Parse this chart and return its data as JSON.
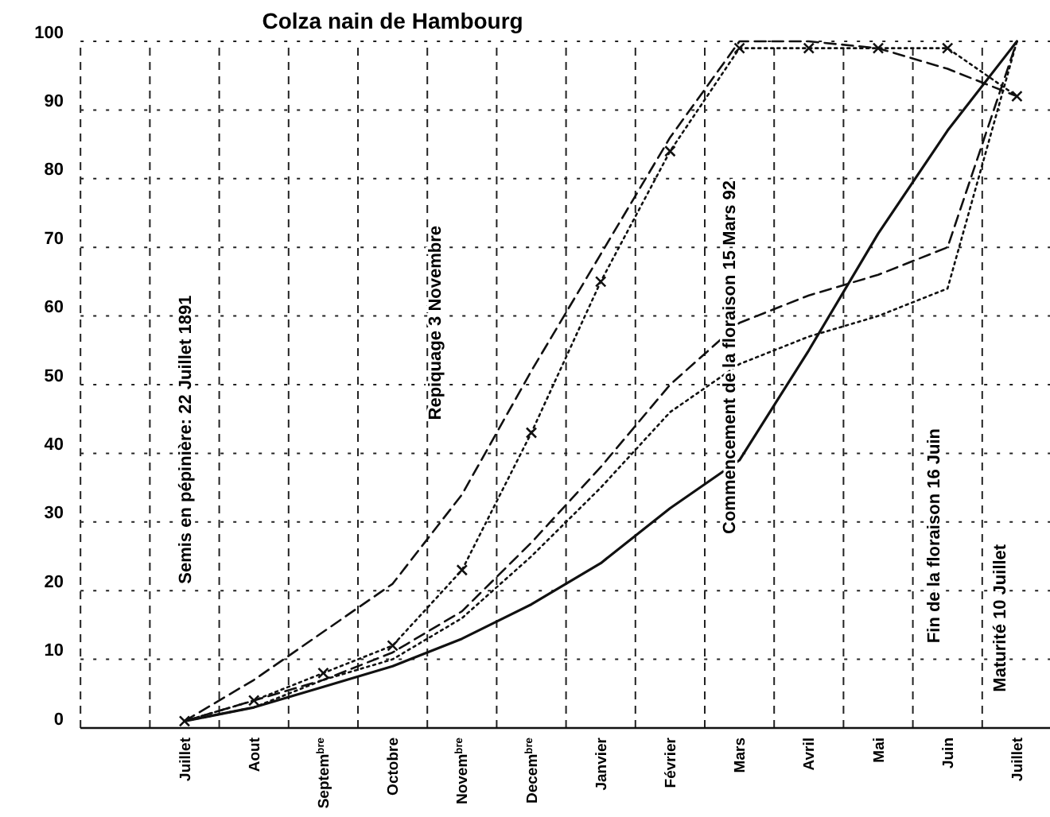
{
  "chart_data": {
    "type": "line",
    "title": "Colza nain de Hambourg",
    "categories": [
      "Juillet",
      "Aout",
      "Septem$^{bre}$",
      "Octobre",
      "Novem$^{bre}$",
      "Decem$^{bre}$",
      "Janvier",
      "Février",
      "Mars",
      "Avril",
      "Mai",
      "Juin",
      "Juillet"
    ],
    "ylim": [
      0,
      100
    ],
    "yticks": [
      0,
      10,
      20,
      30,
      40,
      50,
      60,
      70,
      80,
      90,
      100
    ],
    "grid": true,
    "series": [
      {
        "color": "#111111",
        "line_style": "solid",
        "values": [
          1,
          3,
          6,
          9,
          13,
          18,
          24,
          32,
          39,
          55,
          72,
          87,
          100
        ]
      },
      {
        "color": "#111111",
        "line_style": "dotted",
        "values": [
          1,
          3,
          7,
          10,
          16,
          25,
          35,
          46,
          53,
          57,
          60,
          64,
          100
        ]
      },
      {
        "color": "#111111",
        "line_style": "dashed",
        "values": [
          1,
          4,
          7,
          11,
          17,
          27,
          38,
          50,
          59,
          63,
          66,
          70,
          100
        ]
      },
      {
        "color": "#111111",
        "line_style": "dotted",
        "marker": "cross",
        "values": [
          1,
          4,
          8,
          12,
          23,
          43,
          65,
          84,
          99,
          99,
          99,
          99,
          92
        ]
      },
      {
        "color": "#111111",
        "line_style": "dashed",
        "values": [
          1,
          7,
          14,
          21,
          34,
          52,
          69,
          86,
          100,
          100,
          99,
          96,
          92
        ]
      }
    ],
    "annotations": [
      "Semis en pépinière: 22 Juillet 1891",
      "Repiquage 3 Novembre",
      "Commencement de la floraison 15 Mars 92",
      "Fin de la floraison 16 Juin",
      "Maturité 10 Juillet"
    ]
  }
}
